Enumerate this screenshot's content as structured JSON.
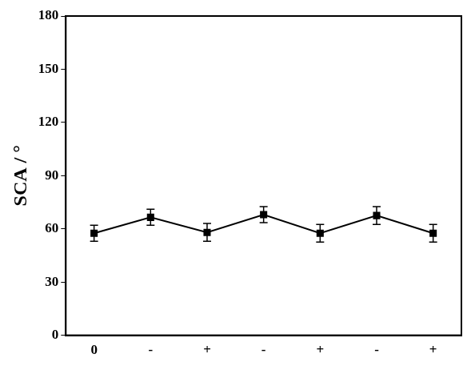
{
  "chart_data": {
    "type": "line",
    "y_label": "SCA / °",
    "categories": [
      "0",
      "-",
      "+",
      "-",
      "+",
      "-",
      "+"
    ],
    "values": [
      57.5,
      66.5,
      58,
      68,
      57.5,
      67.5,
      57.5
    ],
    "errors": [
      4.5,
      4.5,
      5,
      4.5,
      5,
      5,
      5
    ],
    "color": "#000000",
    "marker": "square",
    "line_style": "solid",
    "ylim": [
      0,
      180
    ],
    "yticks": [
      0,
      30,
      60,
      90,
      120,
      150,
      180
    ],
    "grid": false
  }
}
